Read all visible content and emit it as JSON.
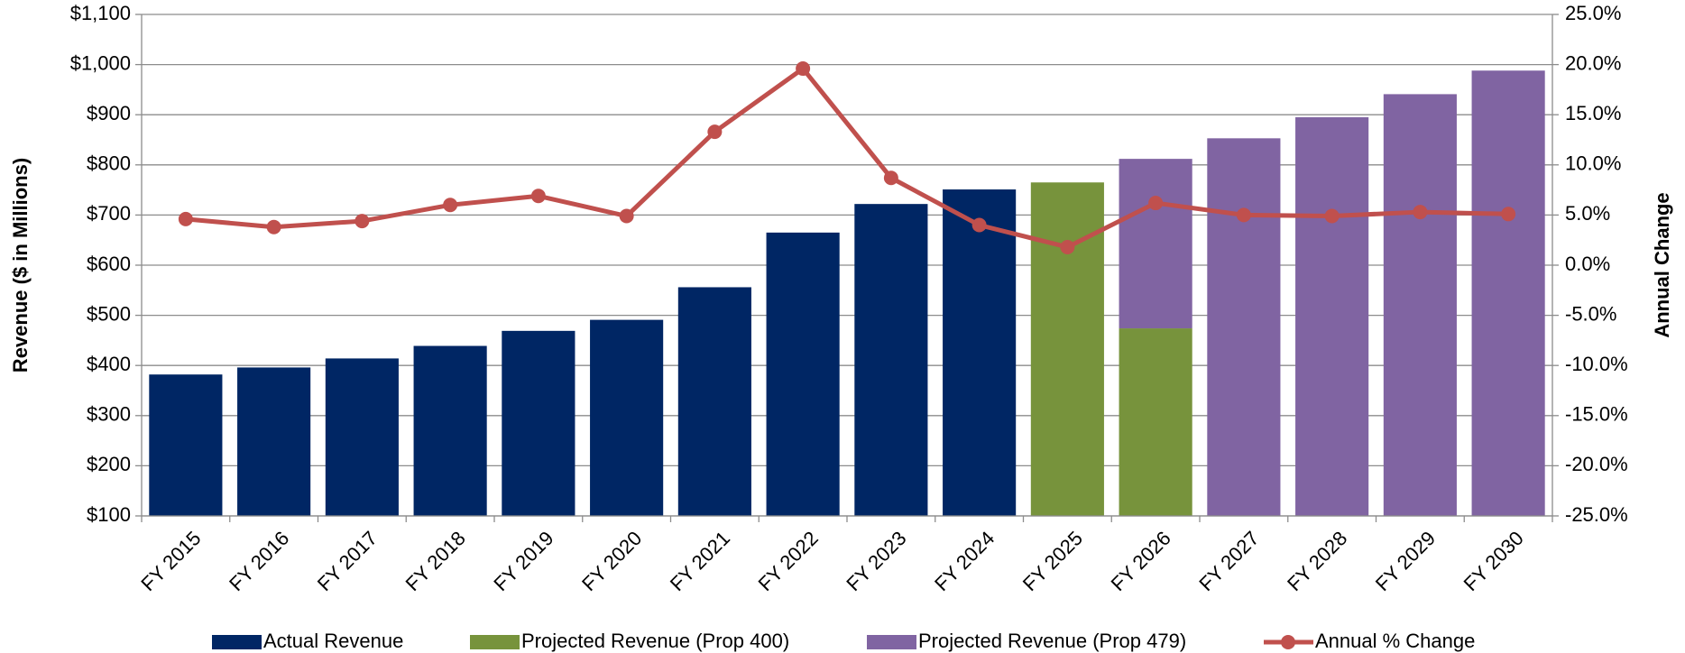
{
  "chart_data": {
    "type": "bar",
    "categories": [
      "FY 2015",
      "FY 2016",
      "FY 2017",
      "FY 2018",
      "FY 2019",
      "FY 2020",
      "FY 2021",
      "FY 2022",
      "FY 2023",
      "FY 2024",
      "FY 2025",
      "FY 2026",
      "FY 2027",
      "FY 2028",
      "FY 2029",
      "FY 2030"
    ],
    "stacked": true,
    "series": [
      {
        "name": "Actual Revenue",
        "color": "#002664",
        "type": "bar",
        "values": [
          382,
          396,
          414,
          439,
          469,
          491,
          556,
          665,
          722,
          751,
          null,
          null,
          null,
          null,
          null,
          null
        ]
      },
      {
        "name": "Projected Revenue (Prop 400)",
        "color": "#77933c",
        "type": "bar",
        "values": [
          null,
          null,
          null,
          null,
          null,
          null,
          null,
          null,
          null,
          null,
          765,
          474,
          null,
          null,
          null,
          null
        ]
      },
      {
        "name": "Projected Revenue (Prop 479)",
        "color": "#8064a2",
        "type": "bar",
        "values": [
          null,
          null,
          null,
          null,
          null,
          null,
          null,
          null,
          null,
          null,
          null,
          338,
          853,
          895,
          941,
          988
        ]
      },
      {
        "name": "Annual % Change",
        "color": "#c0504d",
        "type": "line",
        "axis": "y2",
        "values": [
          4.6,
          3.8,
          4.4,
          6.0,
          6.9,
          4.9,
          13.3,
          19.6,
          8.7,
          4.0,
          1.8,
          6.2,
          5.0,
          4.9,
          5.3,
          5.1
        ]
      }
    ],
    "ylabel": "Revenue ($ in Millions)",
    "y2label": "Annual Change",
    "ylim": [
      100,
      1100
    ],
    "yticks": [
      {
        "value": 100,
        "label": "$100"
      },
      {
        "value": 200,
        "label": "$200"
      },
      {
        "value": 300,
        "label": "$300"
      },
      {
        "value": 400,
        "label": "$400"
      },
      {
        "value": 500,
        "label": "$500"
      },
      {
        "value": 600,
        "label": "$600"
      },
      {
        "value": 700,
        "label": "$700"
      },
      {
        "value": 800,
        "label": "$800"
      },
      {
        "value": 900,
        "label": "$900"
      },
      {
        "value": 1000,
        "label": "$1,000"
      },
      {
        "value": 1100,
        "label": "$1,100"
      }
    ],
    "y2lim": [
      -25,
      25
    ],
    "y2ticks": [
      {
        "value": -25,
        "label": "-25.0%"
      },
      {
        "value": -20,
        "label": "-20.0%"
      },
      {
        "value": -15,
        "label": "-15.0%"
      },
      {
        "value": -10,
        "label": "-10.0%"
      },
      {
        "value": -5,
        "label": "-5.0%"
      },
      {
        "value": 0,
        "label": "0.0%"
      },
      {
        "value": 5,
        "label": "5.0%"
      },
      {
        "value": 10,
        "label": "10.0%"
      },
      {
        "value": 15,
        "label": "15.0%"
      },
      {
        "value": 20,
        "label": "20.0%"
      },
      {
        "value": 25,
        "label": "25.0%"
      }
    ],
    "grid": true,
    "legend": "bottom"
  }
}
